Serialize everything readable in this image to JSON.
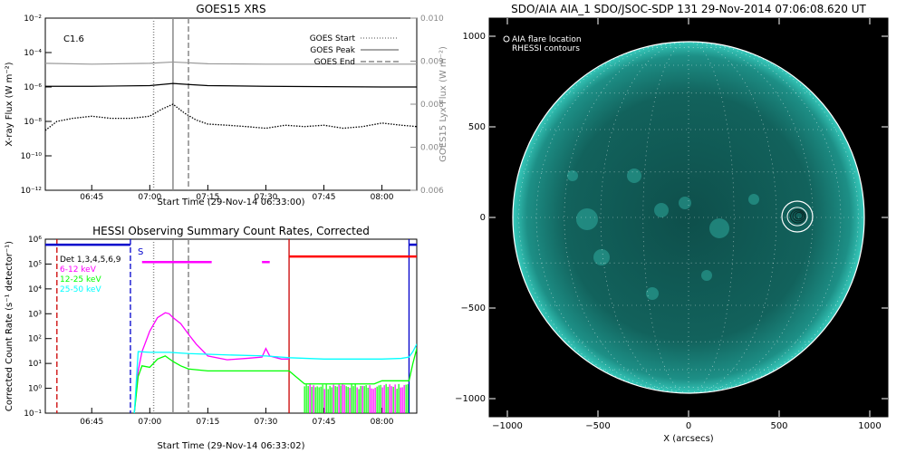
{
  "chart_data": [
    {
      "type": "line",
      "title": "GOES15 XRS",
      "xlabel": "Start Time (29-Nov-14 06:33:00)",
      "ylabel": "X-ray Flux (W m⁻²)",
      "y2label": "GOES15 Lyx Flux (W m⁻²)",
      "xlim": [
        "06:33",
        "08:09"
      ],
      "xticks": [
        "06:45",
        "07:00",
        "07:15",
        "07:30",
        "07:45",
        "08:00"
      ],
      "ylim": [
        1e-12,
        0.01
      ],
      "y_log": true,
      "yticks": [
        "10⁻¹²",
        "10⁻¹⁰",
        "10⁻⁸",
        "10⁻⁶",
        "10⁻⁴",
        "10⁻²"
      ],
      "y2lim": [
        0.006,
        0.01
      ],
      "y2ticks": [
        "0.006",
        "0.007",
        "0.008",
        "0.009",
        "0.010"
      ],
      "annotation": "C1.6",
      "legend": [
        {
          "label": "GOES Start",
          "style": "dotted"
        },
        {
          "label": "GOES Peak",
          "style": "solid"
        },
        {
          "label": "GOES End",
          "style": "dashed"
        }
      ],
      "legend_position": "top-right",
      "markers": {
        "start": "07:01",
        "peak": "07:06",
        "end": "07:10"
      },
      "series": [
        {
          "key": "lya",
          "axis": "right",
          "color": "#999999",
          "x": [
            "06:33",
            "06:45",
            "07:00",
            "07:06",
            "07:15",
            "07:30",
            "07:45",
            "08:00",
            "08:09"
          ],
          "y": [
            0.00895,
            0.00893,
            0.00895,
            0.00898,
            0.00894,
            0.00893,
            0.00893,
            0.00893,
            0.00893
          ]
        },
        {
          "key": "long",
          "axis": "left",
          "color": "#000000",
          "x": [
            "06:33",
            "06:45",
            "07:00",
            "07:06",
            "07:10",
            "07:15",
            "07:30",
            "07:45",
            "08:00",
            "08:09"
          ],
          "y": [
            1.1e-06,
            1.1e-06,
            1.2e-06,
            1.6e-06,
            1.4e-06,
            1.2e-06,
            1.1e-06,
            1.05e-06,
            1e-06,
            1e-06
          ]
        },
        {
          "key": "short",
          "axis": "left",
          "color": "#000000",
          "style": "dotted",
          "x": [
            "06:33",
            "06:36",
            "06:40",
            "06:45",
            "06:50",
            "06:55",
            "07:00",
            "07:03",
            "07:06",
            "07:09",
            "07:12",
            "07:15",
            "07:20",
            "07:25",
            "07:30",
            "07:35",
            "07:40",
            "07:45",
            "07:50",
            "07:55",
            "08:00",
            "08:05",
            "08:09"
          ],
          "y": [
            3e-09,
            1e-08,
            1.5e-08,
            2e-08,
            1.5e-08,
            1.5e-08,
            2e-08,
            5e-08,
            1e-07,
            3e-08,
            1.2e-08,
            7e-09,
            6e-09,
            5e-09,
            4e-09,
            6e-09,
            5e-09,
            6e-09,
            4e-09,
            5e-09,
            8e-09,
            6e-09,
            5e-09
          ]
        }
      ]
    },
    {
      "type": "line",
      "title": "HESSI Observing Summary Count Rates, Corrected",
      "xlabel": "Start Time (29-Nov-14 06:33:02)",
      "ylabel": "Corrected Count Rate (s⁻¹ detector⁻¹)",
      "xlim": [
        "06:33",
        "08:09"
      ],
      "xticks": [
        "06:45",
        "07:00",
        "07:15",
        "07:30",
        "07:45",
        "08:00"
      ],
      "ylim": [
        0.1,
        1000000.0
      ],
      "y_log": true,
      "yticks": [
        "10⁻¹",
        "10⁰",
        "10¹",
        "10²",
        "10³",
        "10⁴",
        "10⁵",
        "10⁶"
      ],
      "legend": [
        {
          "label": "Det 1,3,4,5,6,9",
          "color": "#000000"
        },
        {
          "label": "6-12 keV",
          "color": "#ff00ff"
        },
        {
          "label": "12-25 keV",
          "color": "#00ff00"
        },
        {
          "label": "25-50 keV",
          "color": "#00ffff"
        }
      ],
      "legend_position": "top-left",
      "flag_label": "S",
      "series": [
        {
          "key": "k6",
          "color": "#ff00ff",
          "x": [
            "06:56",
            "06:57",
            "06:58",
            "07:00",
            "07:02",
            "07:04",
            "07:05",
            "07:06",
            "07:08",
            "07:10",
            "07:12",
            "07:15",
            "07:20",
            "07:25",
            "07:29",
            "07:30",
            "07:31",
            "07:34",
            "07:36"
          ],
          "y": [
            0.1,
            5,
            30,
            200,
            700,
            1100,
            1000,
            700,
            400,
            150,
            60,
            20,
            14,
            16,
            18,
            40,
            20,
            15,
            15
          ]
        },
        {
          "key": "k12",
          "color": "#00ff00",
          "x": [
            "06:56",
            "06:57",
            "06:58",
            "07:00",
            "07:02",
            "07:04",
            "07:06",
            "07:08",
            "07:10",
            "07:15",
            "07:20",
            "07:25",
            "07:30",
            "07:35",
            "07:36",
            "07:40",
            "07:50",
            "07:58",
            "08:00",
            "08:05",
            "08:07",
            "08:08",
            "08:09"
          ],
          "y": [
            0.1,
            3,
            8,
            7,
            15,
            20,
            12,
            8,
            6,
            5,
            5,
            5,
            5,
            5,
            5,
            1.5,
            1.5,
            1.5,
            2,
            2,
            2,
            10,
            40
          ]
        },
        {
          "key": "k25",
          "color": "#00ffff",
          "x": [
            "06:56",
            "06:57",
            "07:00",
            "07:05",
            "07:10",
            "07:20",
            "07:30",
            "07:36",
            "07:45",
            "08:00",
            "08:05",
            "08:07",
            "08:08",
            "08:09"
          ],
          "y": [
            0.1,
            30,
            28,
            28,
            25,
            22,
            20,
            17,
            15,
            15,
            16,
            18,
            30,
            60
          ]
        }
      ],
      "flags": [
        {
          "color": "#0000cc",
          "x": [
            "06:33",
            "06:55"
          ],
          "y": 600000.0
        },
        {
          "color": "#ff00ff",
          "x": [
            "06:58",
            "07:16"
          ],
          "y": 120000.0
        },
        {
          "color": "#ff00ff",
          "x": [
            "07:29",
            "07:31"
          ],
          "y": 120000.0
        },
        {
          "color": "#ff0000",
          "x": [
            "07:36",
            "08:09"
          ],
          "y": 200000.0
        },
        {
          "color": "#0000cc",
          "x": [
            "08:07",
            "08:09"
          ],
          "y": 600000.0
        }
      ],
      "vlines": [
        {
          "x": "06:36",
          "color": "#cc0000",
          "style": "dashed"
        },
        {
          "x": "06:55",
          "color": "#0000cc",
          "style": "dashed"
        },
        {
          "x": "07:36",
          "color": "#cc0000",
          "style": "solid"
        },
        {
          "x": "08:07",
          "color": "#0000cc",
          "style": "solid"
        }
      ]
    },
    {
      "type": "heatmap",
      "title": "SDO/AIA AIA_1 SDO/JSOC-SDP 131 29-Nov-2014 07:06:08.620 UT",
      "xlabel": "X (arcsecs)",
      "ylabel": "",
      "xlim": [
        -1100,
        1100
      ],
      "ylim": [
        -1100,
        1100
      ],
      "xticks": [
        "−1000",
        "−500",
        "0",
        "500",
        "1000"
      ],
      "yticks": [
        "−1000",
        "−500",
        "0",
        "500",
        "1000"
      ],
      "legend": [
        "AIA flare location",
        "RHESSI contours"
      ],
      "legend_position": "top-left",
      "solar_radius": 970,
      "flare_location": [
        600,
        5
      ],
      "disk_color": "#126b65",
      "limb_color": "#2fc4b6",
      "contour_color": "#ffffff"
    }
  ]
}
